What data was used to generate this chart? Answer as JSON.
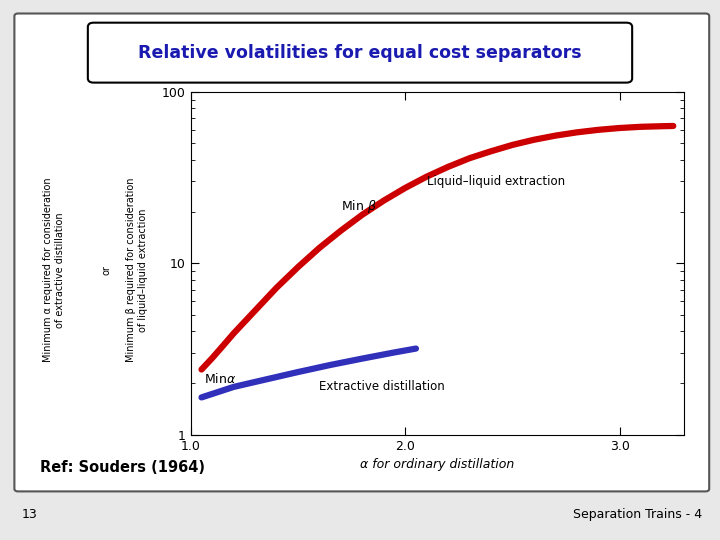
{
  "title": "Relative volatilities for equal cost separators",
  "title_color": "#1a1ab0",
  "xlabel": "α for ordinary distillation",
  "ylabel1": "Minimum α required for consideration\nof extractive distillation",
  "ylabel2": "Minimum β required for consideration\nof liquid–liquid extraction",
  "xlim": [
    1.0,
    3.3
  ],
  "ylim": [
    1.0,
    100.0
  ],
  "red_curve_x": [
    1.05,
    1.1,
    1.15,
    1.2,
    1.3,
    1.4,
    1.5,
    1.6,
    1.7,
    1.8,
    1.9,
    2.0,
    2.1,
    2.2,
    2.3,
    2.4,
    2.5,
    2.6,
    2.7,
    2.8,
    2.9,
    3.0,
    3.1,
    3.2,
    3.25
  ],
  "red_curve_y": [
    2.4,
    2.8,
    3.3,
    3.9,
    5.3,
    7.2,
    9.5,
    12.3,
    15.5,
    19.2,
    23.2,
    27.5,
    32.0,
    36.5,
    41.0,
    45.0,
    49.0,
    52.5,
    55.5,
    58.0,
    60.0,
    61.5,
    62.5,
    63.0,
    63.2
  ],
  "blue_line_x": [
    1.05,
    1.2,
    1.35,
    1.5,
    1.65,
    1.8,
    1.95,
    2.05
  ],
  "blue_line_y": [
    1.65,
    1.9,
    2.1,
    2.32,
    2.55,
    2.78,
    3.02,
    3.18
  ],
  "red_color": "#cc0000",
  "blue_color": "#3030bb",
  "ref_text": "Ref: Souders (1964)",
  "page_num": "13",
  "slide_ref": "Separation Trains - 4",
  "bg_color": "#ffffff",
  "slide_bg": "#e8e8e8",
  "box_bg": "#ffffff",
  "outer_border_color": "#555555",
  "title_box_color": "#000000"
}
